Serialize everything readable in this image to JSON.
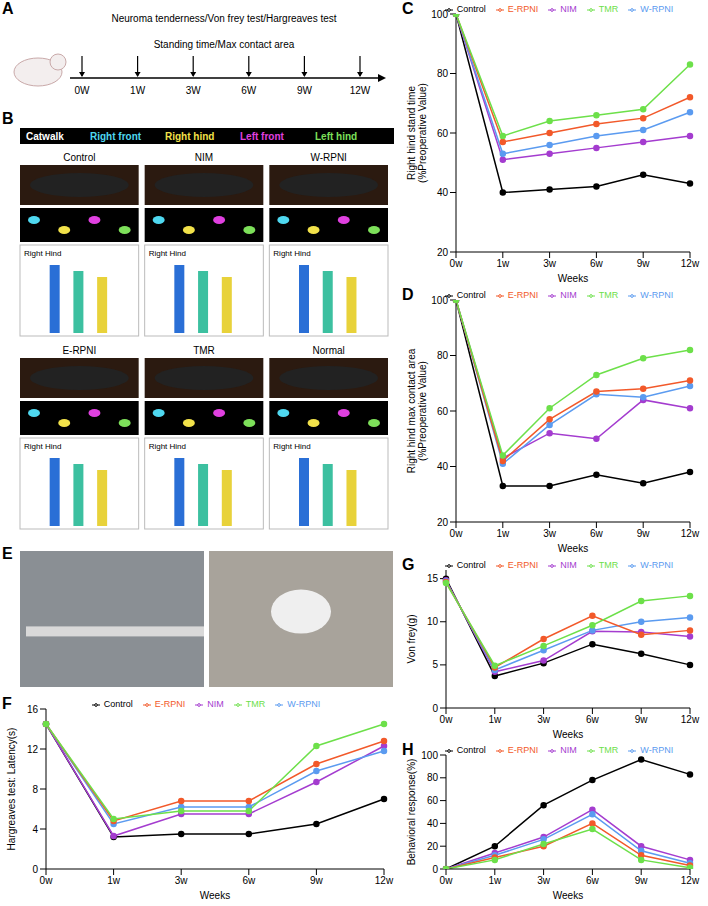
{
  "panels": {
    "A": {
      "label": "A",
      "line1": "Neuroma tenderness/Von frey test/Hargreaves test",
      "line2": "Standing time/Max contact area",
      "timepoints": [
        "0W",
        "1W",
        "3W",
        "6W",
        "9W",
        "12W"
      ]
    },
    "B": {
      "label": "B",
      "header": "Catwalk",
      "paw_legend": [
        {
          "name": "Right front",
          "color": "#4fd8f0"
        },
        {
          "name": "Right hind",
          "color": "#f2e24a"
        },
        {
          "name": "Left front",
          "color": "#e040e0"
        },
        {
          "name": "Left hind",
          "color": "#7de05a"
        }
      ],
      "groups": [
        "Control",
        "NIM",
        "W-RPNI",
        "E-RPNI",
        "TMR",
        "Normal"
      ],
      "plot_label": "Right Hind"
    },
    "E": {
      "label": "E"
    }
  },
  "chart_data": [
    {
      "title": "C",
      "type": "line",
      "categories": [
        "0w",
        "1w",
        "3w",
        "6w",
        "9w",
        "12w"
      ],
      "x_label": "Weeks",
      "y_label": "Right hind stand time (%Preoperative Value)",
      "ylim": [
        20,
        100
      ],
      "yticks": [
        20,
        40,
        60,
        80,
        100
      ],
      "grid": false,
      "legend": "top",
      "marker": "circle",
      "series": [
        {
          "name": "Control",
          "color": "#000000",
          "values": [
            100,
            40,
            41,
            42,
            46,
            43
          ]
        },
        {
          "name": "NIM",
          "color": "#a43ccf",
          "values": [
            100,
            51,
            53,
            55,
            57,
            59
          ]
        },
        {
          "name": "W-RPNI",
          "color": "#5b9bf0",
          "values": [
            100,
            53,
            56,
            59,
            61,
            67
          ]
        },
        {
          "name": "E-RPNI",
          "color": "#f2592a",
          "values": [
            100,
            57,
            60,
            63,
            65,
            72
          ]
        },
        {
          "name": "TMR",
          "color": "#6de04a",
          "values": [
            100,
            59,
            64,
            66,
            68,
            83
          ]
        }
      ]
    },
    {
      "title": "D",
      "type": "line",
      "categories": [
        "0w",
        "1w",
        "3w",
        "6w",
        "9w",
        "12w"
      ],
      "x_label": "Weeks",
      "y_label": "Right hind max contact area (%Preoperative Value)",
      "ylim": [
        20,
        100
      ],
      "yticks": [
        20,
        40,
        60,
        80,
        100
      ],
      "grid": false,
      "legend": "top",
      "marker": "circle",
      "series": [
        {
          "name": "Control",
          "color": "#000000",
          "values": [
            100,
            33,
            33,
            37,
            34,
            38
          ]
        },
        {
          "name": "NIM",
          "color": "#a43ccf",
          "values": [
            100,
            43,
            52,
            50,
            64,
            61
          ]
        },
        {
          "name": "W-RPNI",
          "color": "#5b9bf0",
          "values": [
            100,
            41,
            55,
            66,
            65,
            69
          ]
        },
        {
          "name": "E-RPNI",
          "color": "#f2592a",
          "values": [
            100,
            42,
            57,
            67,
            68,
            71
          ]
        },
        {
          "name": "TMR",
          "color": "#6de04a",
          "values": [
            100,
            44,
            61,
            73,
            79,
            82
          ]
        }
      ]
    },
    {
      "title": "G",
      "type": "line",
      "categories": [
        "0w",
        "1w",
        "3w",
        "6w",
        "9w",
        "12w"
      ],
      "x_label": "Weeks",
      "y_label": "Von frey(g)",
      "ylim": [
        0,
        16
      ],
      "yticks": [
        0,
        5,
        10,
        15
      ],
      "grid": false,
      "legend": "top",
      "marker": "circle",
      "series": [
        {
          "name": "Control",
          "color": "#000000",
          "values": [
            15,
            3.7,
            5.2,
            7.4,
            6.3,
            5.0
          ]
        },
        {
          "name": "NIM",
          "color": "#a43ccf",
          "values": [
            14.8,
            4.2,
            5.5,
            8.9,
            8.8,
            8.3
          ]
        },
        {
          "name": "W-RPNI",
          "color": "#5b9bf0",
          "values": [
            14.7,
            4.4,
            6.7,
            9.0,
            10.0,
            10.5
          ]
        },
        {
          "name": "E-RPNI",
          "color": "#f2592a",
          "values": [
            14.6,
            4.7,
            8.0,
            10.7,
            8.5,
            9.0
          ]
        },
        {
          "name": "TMR",
          "color": "#6de04a",
          "values": [
            14.5,
            4.9,
            7.2,
            9.6,
            12.4,
            13.0
          ]
        }
      ]
    },
    {
      "title": "F",
      "type": "line",
      "categories": [
        "0w",
        "1w",
        "3w",
        "6w",
        "9w",
        "12w"
      ],
      "x_label": "Weeks",
      "y_label": "Hargreaves test: Latency(s)",
      "ylim": [
        0,
        16
      ],
      "yticks": [
        0,
        4,
        8,
        12,
        16
      ],
      "grid": false,
      "legend": "top",
      "marker": "circle",
      "series": [
        {
          "name": "Control",
          "color": "#000000",
          "values": [
            14.5,
            3.2,
            3.5,
            3.5,
            4.5,
            7.0
          ]
        },
        {
          "name": "NIM",
          "color": "#a43ccf",
          "values": [
            14.5,
            3.3,
            5.5,
            5.5,
            8.7,
            12.3
          ]
        },
        {
          "name": "W-RPNI",
          "color": "#5b9bf0",
          "values": [
            14.5,
            4.5,
            6.2,
            6.2,
            9.8,
            11.8
          ]
        },
        {
          "name": "E-RPNI",
          "color": "#f2592a",
          "values": [
            14.5,
            4.8,
            6.8,
            6.8,
            10.5,
            12.8
          ]
        },
        {
          "name": "TMR",
          "color": "#6de04a",
          "values": [
            14.5,
            5.0,
            5.8,
            5.8,
            12.3,
            14.5
          ]
        }
      ]
    },
    {
      "title": "H",
      "type": "line",
      "categories": [
        "0w",
        "1w",
        "3w",
        "6w",
        "9w",
        "12w"
      ],
      "x_label": "Weeks",
      "y_label": "Behavioral response(%)",
      "ylim": [
        0,
        100
      ],
      "yticks": [
        0,
        20,
        40,
        60,
        80,
        100
      ],
      "grid": false,
      "legend": "top",
      "marker": "circle",
      "series": [
        {
          "name": "Control",
          "color": "#000000",
          "values": [
            0,
            20,
            56,
            78,
            96,
            83
          ]
        },
        {
          "name": "NIM",
          "color": "#a43ccf",
          "values": [
            0,
            14,
            28,
            52,
            20,
            8
          ]
        },
        {
          "name": "W-RPNI",
          "color": "#5b9bf0",
          "values": [
            0,
            12,
            26,
            48,
            16,
            5
          ]
        },
        {
          "name": "E-RPNI",
          "color": "#f2592a",
          "values": [
            0,
            10,
            20,
            40,
            12,
            3
          ]
        },
        {
          "name": "TMR",
          "color": "#6de04a",
          "values": [
            0,
            8,
            22,
            35,
            8,
            1
          ]
        }
      ]
    }
  ]
}
